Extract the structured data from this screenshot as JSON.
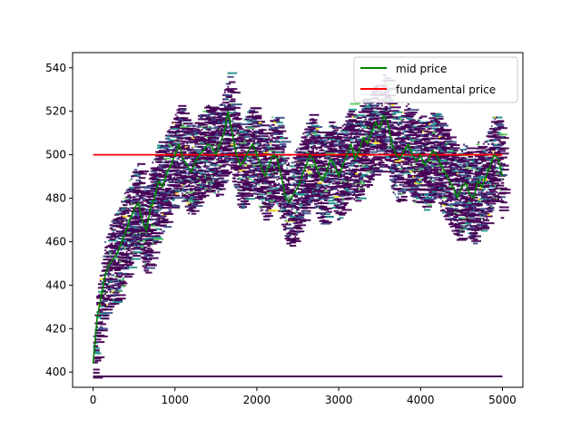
{
  "chart_data": {
    "type": "line",
    "title": "",
    "xlabel": "",
    "ylabel": "",
    "xlim": [
      -250,
      5250
    ],
    "ylim": [
      393,
      547
    ],
    "x_ticks": [
      0,
      1000,
      2000,
      3000,
      4000,
      5000
    ],
    "y_ticks": [
      400,
      420,
      440,
      460,
      480,
      500,
      520,
      540
    ],
    "grid": false,
    "legend_position": "upper right",
    "legend": [
      {
        "label": "mid price",
        "color": "#008000"
      },
      {
        "label": "fundamental price",
        "color": "#ff0000"
      }
    ],
    "series": [
      {
        "name": "mid price",
        "color": "#008000",
        "x": [
          0,
          50,
          100,
          150,
          200,
          250,
          300,
          350,
          400,
          450,
          500,
          550,
          600,
          650,
          700,
          750,
          800,
          850,
          900,
          950,
          1000,
          1050,
          1100,
          1150,
          1200,
          1250,
          1300,
          1350,
          1400,
          1450,
          1500,
          1550,
          1600,
          1650,
          1700,
          1750,
          1800,
          1850,
          1900,
          1950,
          2000,
          2050,
          2100,
          2150,
          2200,
          2250,
          2300,
          2350,
          2400,
          2450,
          2500,
          2550,
          2600,
          2650,
          2700,
          2750,
          2800,
          2850,
          2900,
          2950,
          3000,
          3050,
          3100,
          3150,
          3200,
          3250,
          3300,
          3350,
          3400,
          3450,
          3500,
          3550,
          3600,
          3650,
          3700,
          3750,
          3800,
          3850,
          3900,
          3950,
          4000,
          4050,
          4100,
          4150,
          4200,
          4250,
          4300,
          4350,
          4400,
          4450,
          4500,
          4550,
          4600,
          4650,
          4700,
          4750,
          4800,
          4850,
          4900,
          4950,
          5000
        ],
        "y": [
          404,
          425,
          435,
          445,
          450,
          452,
          455,
          460,
          465,
          470,
          475,
          478,
          470,
          465,
          475,
          480,
          488,
          485,
          492,
          495,
          500,
          505,
          498,
          495,
          492,
          497,
          500,
          502,
          505,
          504,
          500,
          505,
          510,
          520,
          510,
          500,
          495,
          498,
          502,
          505,
          500,
          495,
          490,
          495,
          500,
          498,
          490,
          480,
          478,
          482,
          485,
          490,
          495,
          500,
          497,
          492,
          488,
          492,
          498,
          495,
          490,
          495,
          500,
          505,
          498,
          502,
          508,
          505,
          510,
          515,
          512,
          518,
          515,
          505,
          500,
          498,
          502,
          505,
          500,
          497,
          500,
          495,
          498,
          502,
          500,
          495,
          492,
          488,
          485,
          480,
          485,
          487,
          482,
          480,
          488,
          485,
          490,
          495,
          500,
          498,
          490
        ]
      },
      {
        "name": "fundamental price",
        "color": "#ff0000",
        "x": [
          0,
          5000
        ],
        "y": [
          500,
          500
        ]
      }
    ],
    "order_book_heatmap": {
      "colormap": [
        "#440154",
        "#3b528b",
        "#21918c",
        "#5ec962",
        "#fde725"
      ],
      "floor_line": {
        "y": 398,
        "x": [
          0,
          5000
        ],
        "color": "#440154"
      }
    }
  }
}
